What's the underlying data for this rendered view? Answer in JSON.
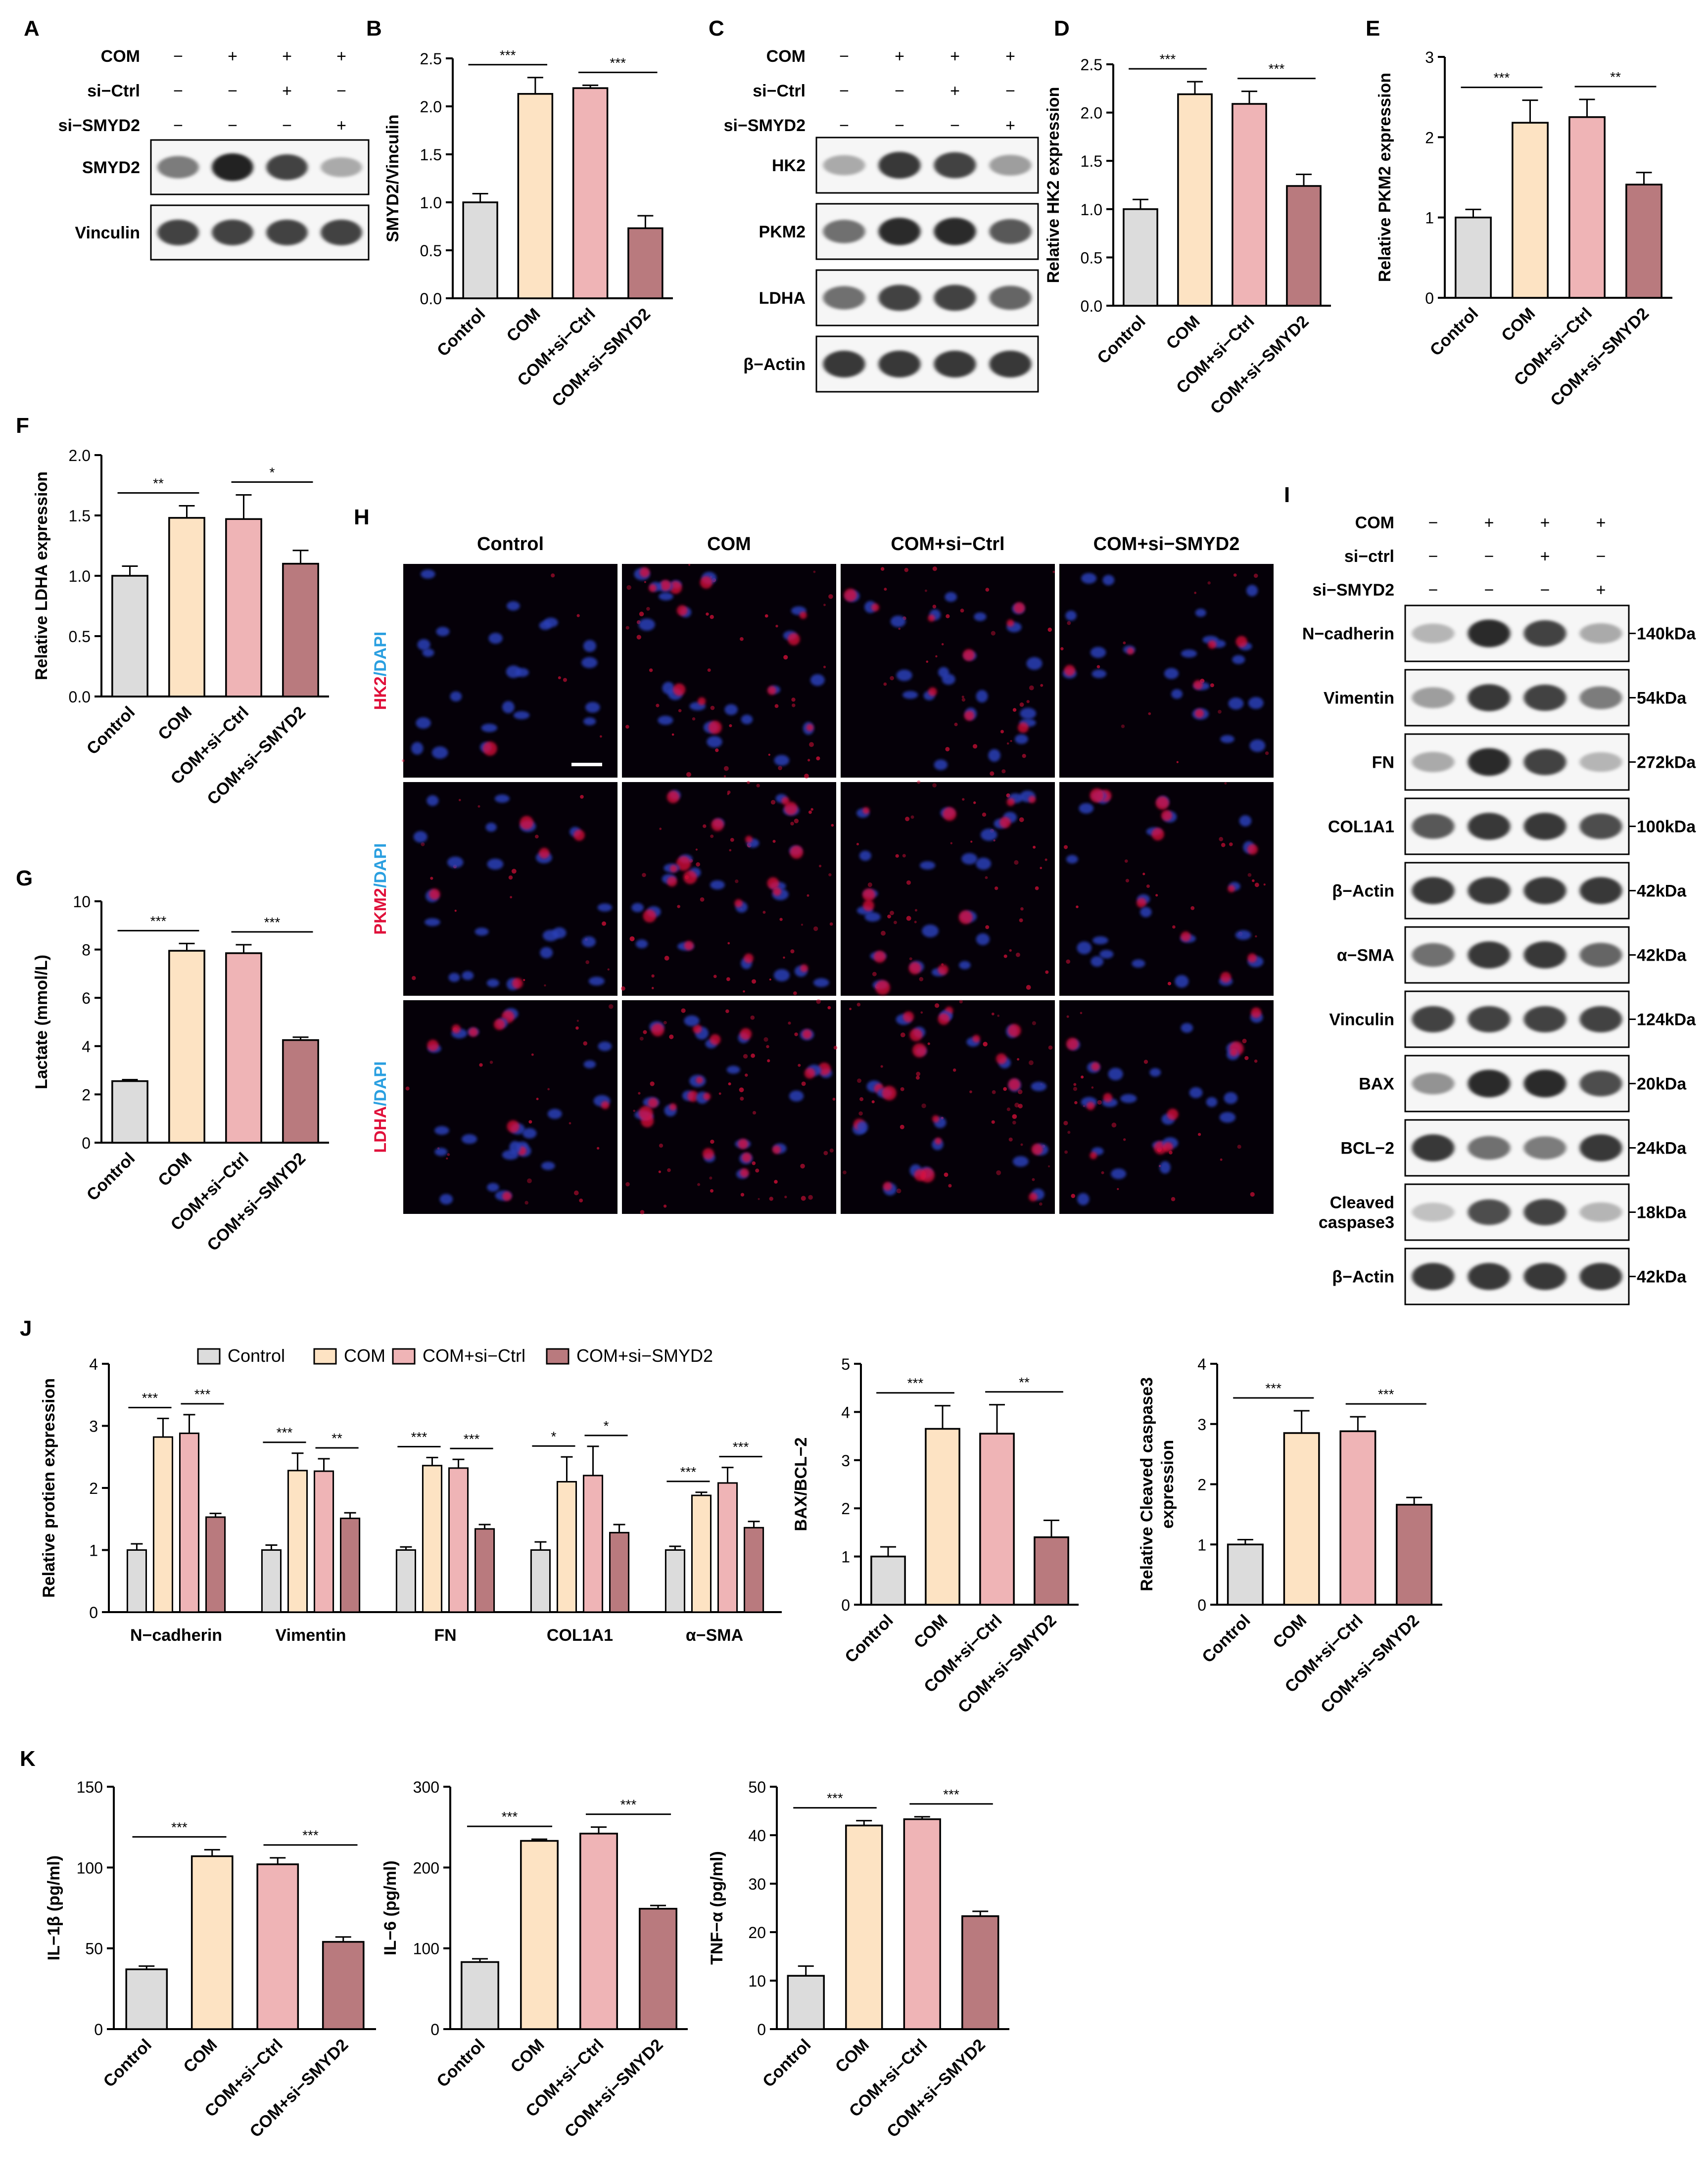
{
  "colors": {
    "control": "#dcdcdc",
    "com": "#fde3c3",
    "com_si_ctrl": "#efb4b6",
    "com_si_smyd2": "#b97a7e",
    "axis": "#000000",
    "fluor_bg": "#050008",
    "nucleus": "#2b3fb8",
    "marker": "#e0103a"
  },
  "condition_labels": [
    "Control",
    "COM",
    "COM+si−Ctrl",
    "COM+si−SMYD2"
  ],
  "panels": {
    "A": {
      "letter": "A",
      "rows": [
        {
          "label": "COM",
          "signs": [
            "−",
            "+",
            "+",
            "+"
          ]
        },
        {
          "label": "si−Ctrl",
          "signs": [
            "−",
            "−",
            "+",
            "−"
          ]
        },
        {
          "label": "si−SMYD2",
          "signs": [
            "−",
            "−",
            "−",
            "+"
          ]
        }
      ],
      "bands": [
        {
          "label": "SMYD2",
          "intensity": [
            0.55,
            0.95,
            0.8,
            0.35
          ]
        },
        {
          "label": "Vinculin",
          "intensity": [
            0.8,
            0.8,
            0.8,
            0.8
          ]
        }
      ]
    },
    "C": {
      "letter": "C",
      "rows": [
        {
          "label": "COM",
          "signs": [
            "−",
            "+",
            "+",
            "+"
          ]
        },
        {
          "label": "si−Ctrl",
          "signs": [
            "−",
            "−",
            "+",
            "−"
          ]
        },
        {
          "label": "si−SMYD2",
          "signs": [
            "−",
            "−",
            "−",
            "+"
          ]
        }
      ],
      "bands": [
        {
          "label": "HK2",
          "intensity": [
            0.35,
            0.85,
            0.8,
            0.4
          ]
        },
        {
          "label": "PKM2",
          "intensity": [
            0.6,
            0.9,
            0.9,
            0.7
          ]
        },
        {
          "label": "LDHA",
          "intensity": [
            0.6,
            0.8,
            0.8,
            0.65
          ]
        },
        {
          "label": "β−Actin",
          "intensity": [
            0.85,
            0.85,
            0.85,
            0.85
          ]
        }
      ]
    },
    "H": {
      "letter": "H",
      "columns": [
        "Control",
        "COM",
        "COM+si−Ctrl",
        "COM+si−SMYD2"
      ],
      "rows": [
        {
          "marker": "HK2",
          "sep": "/",
          "dapi": "DAPI",
          "signal": [
            0.1,
            0.7,
            0.6,
            0.25
          ]
        },
        {
          "marker": "PKM2",
          "sep": "/",
          "dapi": "DAPI",
          "signal": [
            0.3,
            0.8,
            0.75,
            0.35
          ]
        },
        {
          "marker": "LDHA",
          "sep": "/",
          "dapi": "DAPI",
          "signal": [
            0.35,
            0.85,
            0.8,
            0.5
          ]
        }
      ]
    },
    "I": {
      "letter": "I",
      "rows": [
        {
          "label": "COM",
          "signs": [
            "−",
            "+",
            "+",
            "+"
          ]
        },
        {
          "label": "si−ctrl",
          "signs": [
            "−",
            "−",
            "+",
            "−"
          ]
        },
        {
          "label": "si−SMYD2",
          "signs": [
            "−",
            "−",
            "−",
            "+"
          ]
        }
      ],
      "bands": [
        {
          "label": "N−cadherin",
          "kda": "140kDa",
          "intensity": [
            0.3,
            0.9,
            0.8,
            0.35
          ]
        },
        {
          "label": "Vimentin",
          "kda": "54kDa",
          "intensity": [
            0.4,
            0.85,
            0.8,
            0.55
          ]
        },
        {
          "label": "FN",
          "kda": "272kDa",
          "intensity": [
            0.35,
            0.9,
            0.8,
            0.3
          ]
        },
        {
          "label": "COL1A1",
          "kda": "100kDa",
          "intensity": [
            0.7,
            0.85,
            0.85,
            0.75
          ]
        },
        {
          "label": "β−Actin",
          "kda": "42kDa",
          "intensity": [
            0.85,
            0.85,
            0.85,
            0.85
          ]
        },
        {
          "label": "α−SMA",
          "kda": "42kDa",
          "intensity": [
            0.6,
            0.85,
            0.85,
            0.65
          ]
        },
        {
          "label": "Vinculin",
          "kda": "124kDa",
          "intensity": [
            0.8,
            0.8,
            0.8,
            0.8
          ]
        },
        {
          "label": "BAX",
          "kda": "20kDa",
          "intensity": [
            0.45,
            0.9,
            0.9,
            0.75
          ]
        },
        {
          "label": "BCL−2",
          "kda": "24kDa",
          "intensity": [
            0.85,
            0.6,
            0.55,
            0.85
          ]
        },
        {
          "label": "Cleaved\ncaspase3",
          "kda": "18kDa",
          "intensity": [
            0.25,
            0.75,
            0.8,
            0.3
          ]
        },
        {
          "label": "β−Actin",
          "kda": "42kDa",
          "intensity": [
            0.85,
            0.85,
            0.85,
            0.85
          ]
        }
      ]
    },
    "J": {
      "letter": "J"
    },
    "K": {
      "letter": "K"
    },
    "scale_bar": "scale-bar"
  },
  "chart_data": [
    {
      "id": "B",
      "letter": "B",
      "type": "bar",
      "categories": [
        "Control",
        "COM",
        "COM+si−Ctrl",
        "COM+si−SMYD2"
      ],
      "values": [
        1.0,
        2.13,
        2.19,
        0.73
      ],
      "errors": [
        0.09,
        0.17,
        0.03,
        0.13
      ],
      "ylabel": "SMYD2/Vinculin",
      "ylim": [
        0,
        2.5
      ],
      "yticks": [
        "0.0",
        "0.5",
        "1.0",
        "1.5",
        "2.0",
        "2.5"
      ],
      "significance": [
        {
          "from": 0,
          "to": 1,
          "text": "***"
        },
        {
          "from": 2,
          "to": 3,
          "text": "***"
        }
      ]
    },
    {
      "id": "D",
      "letter": "D",
      "type": "bar",
      "categories": [
        "Control",
        "COM",
        "COM+si−Ctrl",
        "COM+si−SMYD2"
      ],
      "values": [
        1.0,
        2.19,
        2.09,
        1.24
      ],
      "errors": [
        0.1,
        0.13,
        0.13,
        0.12
      ],
      "ylabel": "Relative HK2 expression",
      "ylim": [
        0,
        2.5
      ],
      "yticks": [
        "0.0",
        "0.5",
        "1.0",
        "1.5",
        "2.0",
        "2.5"
      ],
      "significance": [
        {
          "from": 0,
          "to": 1,
          "text": "***"
        },
        {
          "from": 2,
          "to": 3,
          "text": "***"
        }
      ]
    },
    {
      "id": "E",
      "letter": "E",
      "type": "bar",
      "categories": [
        "Control",
        "COM",
        "COM+si−Ctrl",
        "COM+si−SMYD2"
      ],
      "values": [
        1.0,
        2.18,
        2.25,
        1.41
      ],
      "errors": [
        0.1,
        0.28,
        0.22,
        0.15
      ],
      "ylabel": "Relative PKM2 expression",
      "ylim": [
        0,
        3
      ],
      "yticks": [
        "0",
        "1",
        "2",
        "3"
      ],
      "significance": [
        {
          "from": 0,
          "to": 1,
          "text": "***"
        },
        {
          "from": 2,
          "to": 3,
          "text": "**"
        }
      ]
    },
    {
      "id": "F",
      "letter": "F",
      "type": "bar",
      "categories": [
        "Control",
        "COM",
        "COM+si−Ctrl",
        "COM+si−SMYD2"
      ],
      "values": [
        1.0,
        1.48,
        1.47,
        1.1
      ],
      "errors": [
        0.08,
        0.1,
        0.2,
        0.11
      ],
      "ylabel": "Relative LDHA expression",
      "ylim": [
        0,
        2.0
      ],
      "yticks": [
        "0.0",
        "0.5",
        "1.0",
        "1.5",
        "2.0"
      ],
      "significance": [
        {
          "from": 0,
          "to": 1,
          "text": "**"
        },
        {
          "from": 2,
          "to": 3,
          "text": "*"
        }
      ]
    },
    {
      "id": "G",
      "letter": "G",
      "type": "bar",
      "categories": [
        "Control",
        "COM",
        "COM+si−Ctrl",
        "COM+si−SMYD2"
      ],
      "values": [
        2.55,
        7.95,
        7.85,
        4.25
      ],
      "errors": [
        0.06,
        0.3,
        0.35,
        0.12
      ],
      "ylabel": "Lactate  (mmol/L)",
      "ylim": [
        0,
        10
      ],
      "yticks": [
        "0",
        "2",
        "4",
        "6",
        "8",
        "10"
      ],
      "significance": [
        {
          "from": 0,
          "to": 1,
          "text": "***"
        },
        {
          "from": 2,
          "to": 3,
          "text": "***"
        }
      ]
    },
    {
      "id": "J1",
      "letter": "",
      "type": "bar",
      "categories": [
        "N−cadherin",
        "Vimentin",
        "FN",
        "COL1A1",
        "α−SMA"
      ],
      "series": [
        {
          "name": "Control",
          "values": [
            1.0,
            1.0,
            1.0,
            1.0,
            1.0
          ],
          "errors": [
            0.1,
            0.08,
            0.05,
            0.13,
            0.06
          ]
        },
        {
          "name": "COM",
          "values": [
            2.82,
            2.28,
            2.36,
            2.1,
            1.88
          ],
          "errors": [
            0.3,
            0.28,
            0.13,
            0.4,
            0.05
          ]
        },
        {
          "name": "COM+si−Ctrl",
          "values": [
            2.88,
            2.27,
            2.32,
            2.2,
            2.08
          ],
          "errors": [
            0.3,
            0.2,
            0.14,
            0.47,
            0.25
          ]
        },
        {
          "name": "COM+si−SMYD2",
          "values": [
            1.53,
            1.51,
            1.34,
            1.28,
            1.36
          ],
          "errors": [
            0.06,
            0.09,
            0.07,
            0.13,
            0.1
          ]
        }
      ],
      "ylabel": "Relative protien expression",
      "ylim": [
        0,
        4
      ],
      "yticks": [
        "0",
        "1",
        "2",
        "3",
        "4"
      ],
      "legend": "top",
      "significance": [
        {
          "group": 0,
          "from": 0,
          "to": 1,
          "text": "***"
        },
        {
          "group": 0,
          "from": 2,
          "to": 3,
          "text": "***"
        },
        {
          "group": 1,
          "from": 0,
          "to": 1,
          "text": "***"
        },
        {
          "group": 1,
          "from": 2,
          "to": 3,
          "text": "**"
        },
        {
          "group": 2,
          "from": 0,
          "to": 1,
          "text": "***"
        },
        {
          "group": 2,
          "from": 2,
          "to": 3,
          "text": "***"
        },
        {
          "group": 3,
          "from": 0,
          "to": 1,
          "text": "*"
        },
        {
          "group": 3,
          "from": 2,
          "to": 3,
          "text": "*"
        },
        {
          "group": 4,
          "from": 0,
          "to": 1,
          "text": "***"
        },
        {
          "group": 4,
          "from": 2,
          "to": 3,
          "text": "***"
        }
      ]
    },
    {
      "id": "J2",
      "letter": "",
      "type": "bar",
      "categories": [
        "Control",
        "COM",
        "COM+si−Ctrl",
        "COM+si−SMYD2"
      ],
      "values": [
        1.0,
        3.65,
        3.55,
        1.4
      ],
      "errors": [
        0.2,
        0.48,
        0.6,
        0.35
      ],
      "ylabel": "BAX/BCL−2",
      "ylim": [
        0,
        5
      ],
      "yticks": [
        "0",
        "1",
        "2",
        "3",
        "4",
        "5"
      ],
      "significance": [
        {
          "from": 0,
          "to": 1,
          "text": "***"
        },
        {
          "from": 2,
          "to": 3,
          "text": "**"
        }
      ]
    },
    {
      "id": "J3",
      "letter": "",
      "type": "bar",
      "categories": [
        "Control",
        "COM",
        "COM+si−Ctrl",
        "COM+si−SMYD2"
      ],
      "values": [
        1.0,
        2.85,
        2.88,
        1.66
      ],
      "errors": [
        0.08,
        0.37,
        0.24,
        0.12
      ],
      "ylabel": "Relative Cleaved caspase3\nexpression",
      "ylim": [
        0,
        4
      ],
      "yticks": [
        "0",
        "1",
        "2",
        "3",
        "4"
      ],
      "significance": [
        {
          "from": 0,
          "to": 1,
          "text": "***"
        },
        {
          "from": 2,
          "to": 3,
          "text": "***"
        }
      ]
    },
    {
      "id": "K1",
      "letter": "",
      "type": "bar",
      "categories": [
        "Control",
        "COM",
        "COM+si−Ctrl",
        "COM+si−SMYD2"
      ],
      "values": [
        37,
        107,
        102,
        54
      ],
      "errors": [
        2,
        4,
        4,
        3
      ],
      "ylabel": "IL−1β (pg/ml)",
      "ylim": [
        0,
        150
      ],
      "yticks": [
        "0",
        "50",
        "100",
        "150"
      ],
      "significance": [
        {
          "from": 0,
          "to": 1,
          "text": "***"
        },
        {
          "from": 2,
          "to": 3,
          "text": "***"
        }
      ]
    },
    {
      "id": "K2",
      "letter": "",
      "type": "bar",
      "categories": [
        "Control",
        "COM",
        "COM+si−Ctrl",
        "COM+si−SMYD2"
      ],
      "values": [
        83,
        233,
        242,
        149
      ],
      "errors": [
        4,
        2,
        8,
        4
      ],
      "ylabel": "IL−6 (pg/ml)",
      "ylim": [
        0,
        300
      ],
      "yticks": [
        "0",
        "100",
        "200",
        "300"
      ],
      "significance": [
        {
          "from": 0,
          "to": 1,
          "text": "***"
        },
        {
          "from": 2,
          "to": 3,
          "text": "***"
        }
      ]
    },
    {
      "id": "K3",
      "letter": "",
      "type": "bar",
      "categories": [
        "Control",
        "COM",
        "COM+si−Ctrl",
        "COM+si−SMYD2"
      ],
      "values": [
        11,
        42,
        43.3,
        23.3
      ],
      "errors": [
        2,
        1,
        0.5,
        1
      ],
      "ylabel": "TNF−α (pg/ml)",
      "ylim": [
        0,
        50
      ],
      "yticks": [
        "0",
        "10",
        "20",
        "30",
        "40",
        "50"
      ],
      "significance": [
        {
          "from": 0,
          "to": 1,
          "text": "***"
        },
        {
          "from": 2,
          "to": 3,
          "text": "***"
        }
      ]
    }
  ]
}
